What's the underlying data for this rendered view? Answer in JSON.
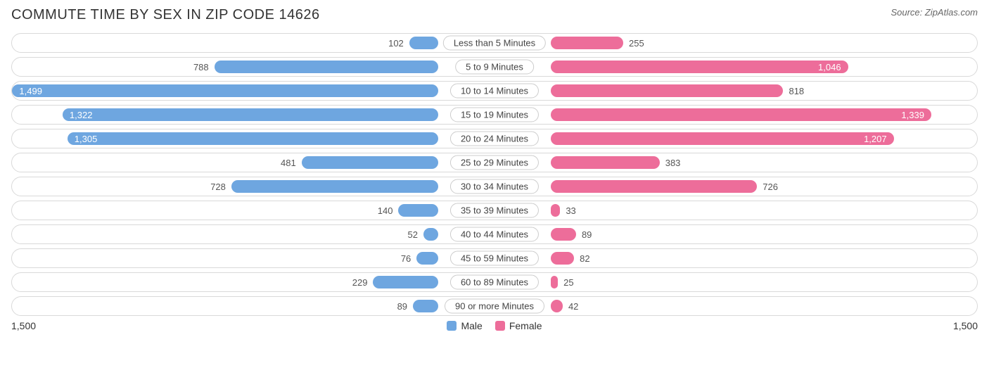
{
  "title": "COMMUTE TIME BY SEX IN ZIP CODE 14626",
  "source": "Source: ZipAtlas.com",
  "colors": {
    "male": "#6ea6e0",
    "female": "#ed6d9a",
    "row_border": "#d9d9d9",
    "text": "#444444",
    "background": "#ffffff"
  },
  "axis": {
    "max": 1500,
    "left_label": "1,500",
    "right_label": "1,500"
  },
  "legend": {
    "male": "Male",
    "female": "Female"
  },
  "inside_threshold": 1000,
  "rows": [
    {
      "label": "Less than 5 Minutes",
      "male": 102,
      "male_txt": "102",
      "female": 255,
      "female_txt": "255"
    },
    {
      "label": "5 to 9 Minutes",
      "male": 788,
      "male_txt": "788",
      "female": 1046,
      "female_txt": "1,046"
    },
    {
      "label": "10 to 14 Minutes",
      "male": 1499,
      "male_txt": "1,499",
      "female": 818,
      "female_txt": "818"
    },
    {
      "label": "15 to 19 Minutes",
      "male": 1322,
      "male_txt": "1,322",
      "female": 1339,
      "female_txt": "1,339"
    },
    {
      "label": "20 to 24 Minutes",
      "male": 1305,
      "male_txt": "1,305",
      "female": 1207,
      "female_txt": "1,207"
    },
    {
      "label": "25 to 29 Minutes",
      "male": 481,
      "male_txt": "481",
      "female": 383,
      "female_txt": "383"
    },
    {
      "label": "30 to 34 Minutes",
      "male": 728,
      "male_txt": "728",
      "female": 726,
      "female_txt": "726"
    },
    {
      "label": "35 to 39 Minutes",
      "male": 140,
      "male_txt": "140",
      "female": 33,
      "female_txt": "33"
    },
    {
      "label": "40 to 44 Minutes",
      "male": 52,
      "male_txt": "52",
      "female": 89,
      "female_txt": "89"
    },
    {
      "label": "45 to 59 Minutes",
      "male": 76,
      "male_txt": "76",
      "female": 82,
      "female_txt": "82"
    },
    {
      "label": "60 to 89 Minutes",
      "male": 229,
      "male_txt": "229",
      "female": 25,
      "female_txt": "25"
    },
    {
      "label": "90 or more Minutes",
      "male": 89,
      "male_txt": "89",
      "female": 42,
      "female_txt": "42"
    }
  ]
}
